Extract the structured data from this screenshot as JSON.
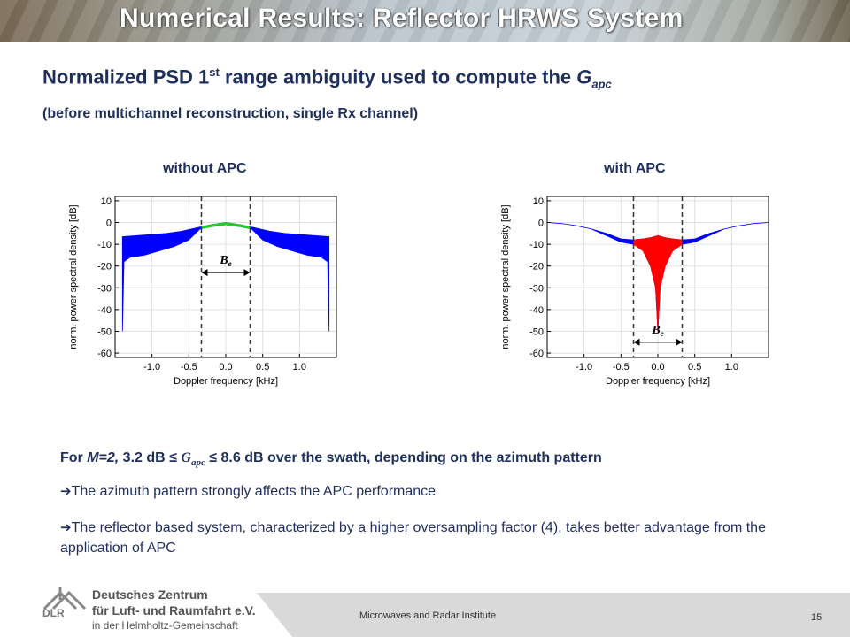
{
  "slide": {
    "title": "Numerical Results: Reflector HRWS System",
    "heading_main": "Normalized PSD 1",
    "heading_sup": "st",
    "heading_rest": " range ambiguity used to compute the ",
    "heading_g": "G",
    "heading_sub": "apc",
    "subheading": "(before multichannel reconstruction, single Rx channel)",
    "caption_left": "without APC",
    "caption_right": "with APC",
    "result_prefix": "For ",
    "result_m": "M=2,",
    "result_mid": "  3.2 dB ≤ ",
    "result_g": "G",
    "result_gsub": "apc",
    "result_end": "  ≤ 8.6 dB over the swath, depending on the azimuth pattern",
    "bullet_1": "The azimuth pattern strongly affects the APC performance",
    "bullet_2": "The reflector based system, characterized by a higher oversampling factor (4), takes better advantage from the application of APC",
    "footer_institute": "Microwaves and Radar Institute",
    "page_number": "15",
    "logo_line1": "Deutsches Zentrum",
    "logo_line2": "für Luft- und Raumfahrt e.V.",
    "logo_line3": "in der Helmholtz-Gemeinschaft",
    "logo_abbrev": "DLR"
  },
  "chart_data": [
    {
      "type": "area",
      "title": "without APC",
      "xlabel": "Doppler frequency [kHz]",
      "ylabel": "norm. power spectral density [dB]",
      "xlim": [
        -1.5,
        1.5
      ],
      "ylim": [
        -62,
        12
      ],
      "xticks": [
        -1.0,
        -0.5,
        0.0,
        0.5,
        1.0
      ],
      "xtick_labels": [
        "-1.0",
        "-0.5",
        "0.0",
        "0.5",
        "1.0"
      ],
      "yticks": [
        10,
        0,
        -10,
        -20,
        -30,
        -40,
        -50,
        -60
      ],
      "ytick_labels": [
        "10",
        "0",
        "-10",
        "-20",
        "-30",
        "-40",
        "-50",
        "-60"
      ],
      "grid": true,
      "band_markers_x": [
        -0.33,
        0.33
      ],
      "band_label": "B_e",
      "highlight_color": "#22cc22",
      "envelope_color": "#0000ff",
      "upper_envelope": {
        "x": [
          -1.4,
          -1.2,
          -1.0,
          -0.8,
          -0.6,
          -0.4,
          -0.2,
          0.0,
          0.2,
          0.4,
          0.6,
          0.8,
          1.0,
          1.2,
          1.4
        ],
        "y": [
          -6.5,
          -6.0,
          -5.5,
          -5.0,
          -4.0,
          -2.5,
          -1.0,
          0.0,
          -1.0,
          -2.5,
          -4.0,
          -5.0,
          -5.5,
          -6.0,
          -6.5
        ]
      },
      "lower_envelope": {
        "x": [
          -1.4,
          -1.38,
          -1.3,
          -1.1,
          -0.9,
          -0.7,
          -0.5,
          -0.35,
          -0.2,
          0.0,
          0.2,
          0.35,
          0.5,
          0.7,
          0.9,
          1.1,
          1.3,
          1.38,
          1.4
        ],
        "y": [
          -50,
          -18,
          -16,
          -15,
          -13,
          -11,
          -8,
          -3,
          -2,
          -1,
          -2,
          -3,
          -8,
          -11,
          -13,
          -15,
          -16,
          -18,
          -50
        ]
      }
    },
    {
      "type": "area",
      "title": "with APC",
      "xlabel": "Doppler frequency [kHz]",
      "ylabel": "norm. power spectral density [dB]",
      "xlim": [
        -1.5,
        1.5
      ],
      "ylim": [
        -62,
        12
      ],
      "xticks": [
        -1.0,
        -0.5,
        0.0,
        0.5,
        1.0
      ],
      "xtick_labels": [
        "-1.0",
        "-0.5",
        "0.0",
        "0.5",
        "1.0"
      ],
      "yticks": [
        10,
        0,
        -10,
        -20,
        -30,
        -40,
        -50,
        -60
      ],
      "ytick_labels": [
        "10",
        "0",
        "-10",
        "-20",
        "-30",
        "-40",
        "-50",
        "-60"
      ],
      "grid": true,
      "band_markers_x": [
        -0.33,
        0.33
      ],
      "band_label": "B_e",
      "highlight_color": "#ff0000",
      "envelope_color": "#0000ff",
      "upper_envelope": {
        "x": [
          -1.5,
          -1.3,
          -1.1,
          -0.9,
          -0.7,
          -0.5,
          -0.33,
          -0.2,
          -0.1,
          -0.05,
          0.0,
          0.05,
          0.1,
          0.2,
          0.33,
          0.5,
          0.7,
          0.9,
          1.1,
          1.3,
          1.5
        ],
        "y": [
          0,
          -0.5,
          -1.5,
          -3.0,
          -5.0,
          -7.5,
          -8.0,
          -7.5,
          -7.0,
          -6.5,
          -6.0,
          -6.5,
          -7.0,
          -7.5,
          -8.0,
          -7.5,
          -5.0,
          -3.0,
          -1.5,
          -0.5,
          0
        ]
      },
      "lower_envelope": {
        "x": [
          -1.5,
          -1.3,
          -1.1,
          -0.9,
          -0.7,
          -0.5,
          -0.33,
          -0.2,
          -0.1,
          -0.03,
          0.0,
          0.03,
          0.1,
          0.2,
          0.33,
          0.5,
          0.7,
          0.9,
          1.1,
          1.3,
          1.5
        ],
        "y": [
          0,
          -0.5,
          -1.5,
          -3.0,
          -6.0,
          -9.0,
          -10.0,
          -13.0,
          -20.0,
          -30.0,
          -50.0,
          -30.0,
          -20.0,
          -13.0,
          -10.0,
          -9.0,
          -6.0,
          -3.0,
          -1.5,
          -0.5,
          0
        ]
      }
    }
  ]
}
